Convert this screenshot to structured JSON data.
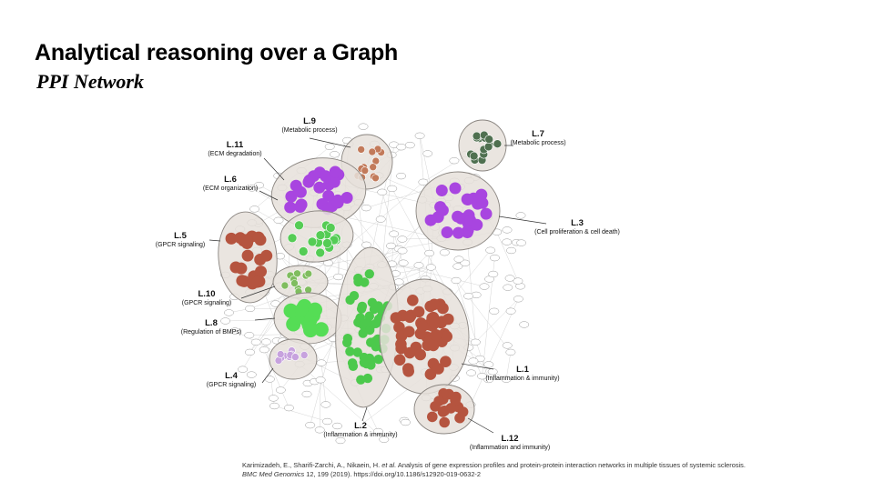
{
  "slide": {
    "title": "Analytical reasoning over a Graph",
    "subtitle": "PPI Network"
  },
  "modules": [
    {
      "id": "L.1",
      "function": "(Inflammation & immunity)",
      "color": "#b5543f"
    },
    {
      "id": "L.2",
      "function": "(Inflammation & immunity)",
      "color": "#4cc94c"
    },
    {
      "id": "L.3",
      "function": "(Cell proliferation & cell death)",
      "color": "#a845e0"
    },
    {
      "id": "L.4",
      "function": "(GPCR signaling)",
      "color": "#c7a2de"
    },
    {
      "id": "L.5",
      "function": "(GPCR signaling)",
      "color": "#b5543f"
    },
    {
      "id": "L.6",
      "function": "(ECM organization)",
      "color": "#55cc55"
    },
    {
      "id": "L.7",
      "function": "(Metabolic process)",
      "color": "#4f7050"
    },
    {
      "id": "L.8",
      "function": "(Regulation of BMPs)",
      "color": "#55dd55"
    },
    {
      "id": "L.9",
      "function": "(Metabolic process)",
      "color": "#c27a5a"
    },
    {
      "id": "L.10",
      "function": "(GPCR signaling)",
      "color": "#7fbd5f"
    },
    {
      "id": "L.11",
      "function": "(ECM degradation)",
      "color": "#a845e0"
    },
    {
      "id": "L.12",
      "function": "(Inflammation and immunity)",
      "color": "#b5543f"
    }
  ],
  "citation": {
    "authors": "Karimizadeh, E., Sharifi-Zarchi, A., Nikaein, H.",
    "etal": "et al.",
    "title": "Analysis of gene expression profiles and protein-protein interaction networks in multiple tissues of systemic sclerosis.",
    "journal": "BMC Med Genomics",
    "details": "12, 199 (2019). https://doi.org/10.1186/s12920-019-0632-2"
  }
}
